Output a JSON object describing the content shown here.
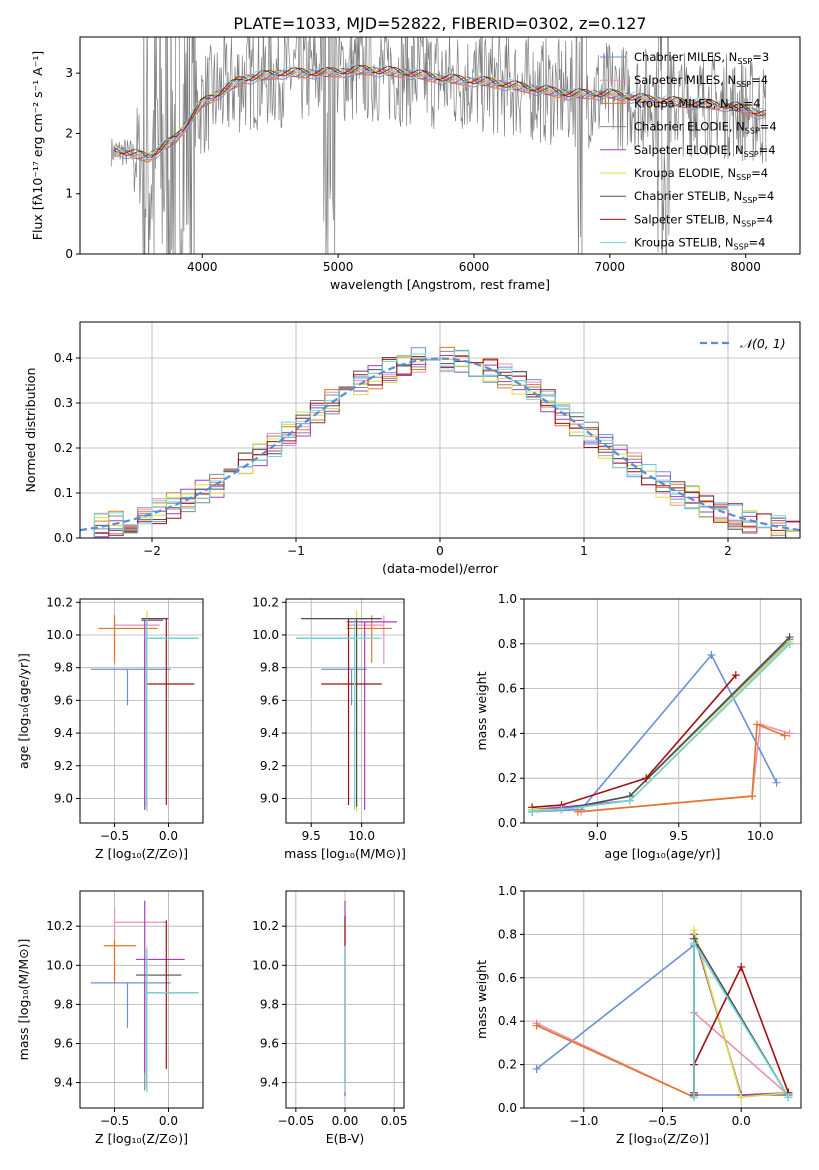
{
  "figure_title": "PLATE=1033, MJD=52822, FIBERID=0302, z=0.127",
  "colors": {
    "chabrier_miles": "#6a8fd6",
    "salpeter_miles": "#f08fb0",
    "kroupa_miles": "#e0782a",
    "chabrier_elodie": "#888888",
    "salpeter_elodie": "#a040c0",
    "kroupa_elodie": "#d8e040",
    "chabrier_stelib": "#505050",
    "salpeter_stelib": "#a01010",
    "kroupa_stelib": "#70d8d8",
    "normal": "#5b8bd4",
    "data": "#808080"
  },
  "chart_data": [
    {
      "id": "spectrum",
      "type": "line",
      "xlabel": "wavelength [Angstrom, rest frame]",
      "ylabel": "Flux [fλ10⁻¹⁷ erg cm⁻² s⁻¹ A⁻¹]",
      "xlim": [
        3100,
        8400
      ],
      "ylim": [
        0,
        3.6
      ],
      "xticks": [
        "4000",
        "5000",
        "6000",
        "7000",
        "8000"
      ],
      "yticks": [
        "0",
        "1",
        "2",
        "3"
      ],
      "data_anchor_x": [
        3400,
        3600,
        3800,
        4000,
        4300,
        4600,
        4900,
        5200,
        5500,
        5800,
        6100,
        6400,
        6700,
        7000,
        7300,
        7600,
        7900,
        8150
      ],
      "data_anchor_y": [
        1.7,
        1.6,
        1.9,
        2.5,
        2.9,
        3.0,
        3.0,
        3.05,
        3.0,
        2.9,
        2.85,
        2.75,
        2.65,
        2.65,
        2.55,
        2.5,
        2.45,
        2.3
      ],
      "legend": [
        {
          "name": "Chabrier MILES, N",
          "sub": "SSP",
          "tail": "=3",
          "color": "#6a8fd6"
        },
        {
          "name": "Salpeter MILES, N",
          "sub": "SSP",
          "tail": "=4",
          "color": "#f08fb0"
        },
        {
          "name": "Kroupa MILES, N",
          "sub": "SSP",
          "tail": "=4",
          "color": "#e0782a"
        },
        {
          "name": "Chabrier ELODIE, N",
          "sub": "SSP",
          "tail": "=4",
          "color": "#888888"
        },
        {
          "name": "Salpeter ELODIE, N",
          "sub": "SSP",
          "tail": "=4",
          "color": "#a040c0"
        },
        {
          "name": "Kroupa ELODIE, N",
          "sub": "SSP",
          "tail": "=4",
          "color": "#d8e040"
        },
        {
          "name": "Chabrier STELIB, N",
          "sub": "SSP",
          "tail": "=4",
          "color": "#505050"
        },
        {
          "name": "Salpeter STELIB, N",
          "sub": "SSP",
          "tail": "=4",
          "color": "#a01010"
        },
        {
          "name": "Kroupa STELIB, N",
          "sub": "SSP",
          "tail": "=4",
          "color": "#70d8d8"
        }
      ]
    },
    {
      "id": "residuals",
      "type": "histogram",
      "xlabel": "(data-model)/error",
      "ylabel": "Normed distribution",
      "xlim": [
        -2.5,
        2.5
      ],
      "ylim": [
        0,
        0.48
      ],
      "xticks": [
        "−2",
        "−1",
        "0",
        "1",
        "2"
      ],
      "yticks": [
        "0.0",
        "0.1",
        "0.2",
        "0.3",
        "0.4"
      ],
      "grid": true,
      "legend_label": "𝒩(0, 1)",
      "bin_width": 0.1
    },
    {
      "id": "age_vs_z",
      "type": "scatter",
      "xlabel": "Z [log₁₀(Z/Z⊙)]",
      "ylabel": "age  [log₁₀(age/yr)]",
      "xlim": [
        -0.82,
        0.32
      ],
      "ylim": [
        8.85,
        10.22
      ],
      "xticks": [
        "−0.5",
        "0.0"
      ],
      "xtick_values": [
        -0.5,
        0.0
      ],
      "yticks": [
        "9.0",
        "9.2",
        "9.4",
        "9.6",
        "9.8",
        "10.0",
        "10.2"
      ],
      "ytick_values": [
        9.0,
        9.2,
        9.4,
        9.6,
        9.8,
        10.0,
        10.2
      ],
      "points": [
        {
          "x": -0.38,
          "xlo": -0.72,
          "xhi": 0.02,
          "y": 9.79,
          "ylo": 9.57,
          "yhi": 9.79,
          "color": "#6a8fd6"
        },
        {
          "x": -0.5,
          "xlo": -0.5,
          "xhi": -0.08,
          "y": 10.06,
          "ylo": 9.82,
          "yhi": 10.12,
          "color": "#f08fb0"
        },
        {
          "x": -0.5,
          "xlo": -0.65,
          "xhi": -0.1,
          "y": 10.04,
          "ylo": 9.83,
          "yhi": 10.12,
          "color": "#e0782a"
        },
        {
          "x": -0.22,
          "xlo": -0.22,
          "xhi": 0.28,
          "y": 9.98,
          "ylo": 8.95,
          "yhi": 9.98,
          "color": "#888888"
        },
        {
          "x": -0.22,
          "xlo": -0.25,
          "xhi": -0.05,
          "y": 10.09,
          "ylo": 8.93,
          "yhi": 10.09,
          "color": "#a040c0"
        },
        {
          "x": -0.2,
          "xlo": -0.25,
          "xhi": 0.0,
          "y": 10.1,
          "ylo": 8.92,
          "yhi": 10.15,
          "color": "#d8e040"
        },
        {
          "x": -0.2,
          "xlo": -0.25,
          "xhi": 0.0,
          "y": 10.1,
          "ylo": 8.95,
          "yhi": 10.1,
          "color": "#505050"
        },
        {
          "x": -0.02,
          "xlo": -0.2,
          "xhi": 0.24,
          "y": 9.7,
          "ylo": 8.96,
          "yhi": 10.1,
          "color": "#a01010"
        },
        {
          "x": -0.2,
          "xlo": -0.22,
          "xhi": 0.28,
          "y": 9.98,
          "ylo": 8.93,
          "yhi": 10.1,
          "color": "#70d8d8"
        }
      ]
    },
    {
      "id": "age_vs_mass",
      "type": "scatter",
      "xlabel": "mass [log₁₀(M/M⊙)]",
      "ylabel": "",
      "xlim": [
        9.25,
        10.42
      ],
      "ylim": [
        8.85,
        10.22
      ],
      "xticks": [
        "9.5",
        "10.0"
      ],
      "xtick_values": [
        9.5,
        10.0
      ],
      "yticks": [
        "9.0",
        "9.2",
        "9.4",
        "9.6",
        "9.8",
        "10.0",
        "10.2"
      ],
      "ytick_values": [
        9.0,
        9.2,
        9.4,
        9.6,
        9.8,
        10.0,
        10.2
      ],
      "points": [
        {
          "x": 9.9,
          "xlo": 9.6,
          "xhi": 10.05,
          "y": 9.79,
          "ylo": 9.57,
          "yhi": 9.79,
          "color": "#6a8fd6"
        },
        {
          "x": 10.22,
          "xlo": 9.85,
          "xhi": 10.22,
          "y": 10.06,
          "ylo": 9.82,
          "yhi": 10.12,
          "color": "#f08fb0"
        },
        {
          "x": 10.1,
          "xlo": 9.85,
          "xhi": 10.3,
          "y": 10.04,
          "ylo": 9.83,
          "yhi": 10.12,
          "color": "#e0782a"
        },
        {
          "x": 9.93,
          "xlo": 9.35,
          "xhi": 9.93,
          "y": 9.98,
          "ylo": 8.95,
          "yhi": 9.98,
          "color": "#888888"
        },
        {
          "x": 10.03,
          "xlo": 9.85,
          "xhi": 10.35,
          "y": 10.08,
          "ylo": 8.93,
          "yhi": 10.08,
          "color": "#a040c0"
        },
        {
          "x": 9.95,
          "xlo": 9.4,
          "xhi": 10.2,
          "y": 10.1,
          "ylo": 8.92,
          "yhi": 10.15,
          "color": "#d8e040"
        },
        {
          "x": 9.95,
          "xlo": 9.4,
          "xhi": 10.2,
          "y": 10.1,
          "ylo": 8.95,
          "yhi": 10.1,
          "color": "#505050"
        },
        {
          "x": 9.87,
          "xlo": 9.6,
          "xhi": 10.2,
          "y": 9.7,
          "ylo": 8.96,
          "yhi": 10.1,
          "color": "#a01010"
        },
        {
          "x": 9.93,
          "xlo": 9.35,
          "xhi": 10.2,
          "y": 9.98,
          "ylo": 8.93,
          "yhi": 10.1,
          "color": "#70d8d8"
        }
      ]
    },
    {
      "id": "weight_vs_age",
      "type": "line",
      "xlabel": "age  [log₁₀(age/yr)]",
      "ylabel": "mass weight",
      "xlim": [
        8.55,
        10.25
      ],
      "ylim": [
        0,
        1.0
      ],
      "xticks": [
        "9.0",
        "9.5",
        "10.0"
      ],
      "xtick_values": [
        9.0,
        9.5,
        10.0
      ],
      "yticks": [
        "0.0",
        "0.2",
        "0.4",
        "0.6",
        "0.8",
        "1.0"
      ],
      "ytick_values": [
        0.0,
        0.2,
        0.4,
        0.6,
        0.8,
        1.0
      ],
      "series": [
        {
          "color": "#6a8fd6",
          "x": [
            8.6,
            8.9,
            9.7,
            10.1
          ],
          "y": [
            0.05,
            0.06,
            0.75,
            0.18
          ]
        },
        {
          "color": "#f08fb0",
          "x": [
            8.9,
            9.95,
            10.0,
            10.18
          ],
          "y": [
            0.05,
            0.12,
            0.44,
            0.4
          ]
        },
        {
          "color": "#e0782a",
          "x": [
            8.88,
            9.95,
            9.98,
            10.15
          ],
          "y": [
            0.05,
            0.12,
            0.44,
            0.39
          ]
        },
        {
          "color": "#888888",
          "x": [
            8.6,
            8.78,
            9.2,
            10.18
          ],
          "y": [
            0.06,
            0.06,
            0.12,
            0.82
          ]
        },
        {
          "color": "#a040c0",
          "x": [
            8.6,
            8.78,
            9.2,
            10.18
          ],
          "y": [
            0.06,
            0.07,
            0.1,
            0.8
          ]
        },
        {
          "color": "#d8e040",
          "x": [
            8.6,
            8.78,
            9.2,
            10.18
          ],
          "y": [
            0.06,
            0.06,
            0.1,
            0.81
          ]
        },
        {
          "color": "#505050",
          "x": [
            8.6,
            8.78,
            9.2,
            10.18
          ],
          "y": [
            0.05,
            0.06,
            0.12,
            0.83
          ]
        },
        {
          "color": "#a01010",
          "x": [
            8.6,
            8.78,
            9.3,
            9.85
          ],
          "y": [
            0.07,
            0.08,
            0.2,
            0.66
          ]
        },
        {
          "color": "#70d8d8",
          "x": [
            8.6,
            8.78,
            9.2,
            10.18
          ],
          "y": [
            0.05,
            0.06,
            0.1,
            0.8
          ]
        }
      ]
    },
    {
      "id": "mass_vs_z",
      "type": "scatter",
      "xlabel": "Z [log₁₀(Z/Z⊙)]",
      "ylabel": "mass [log₁₀(M/M⊙)]",
      "xlim": [
        -0.82,
        0.32
      ],
      "ylim": [
        9.27,
        10.38
      ],
      "xticks": [
        "−0.5",
        "0.0"
      ],
      "xtick_values": [
        -0.5,
        0.0
      ],
      "yticks": [
        "9.4",
        "9.6",
        "9.8",
        "10.0",
        "10.2"
      ],
      "ytick_values": [
        9.4,
        9.6,
        9.8,
        10.0,
        10.2
      ],
      "points": [
        {
          "x": -0.38,
          "xlo": -0.72,
          "xhi": 0.02,
          "y": 9.91,
          "ylo": 9.68,
          "yhi": 9.91,
          "color": "#6a8fd6"
        },
        {
          "x": -0.5,
          "xlo": -0.5,
          "xhi": -0.02,
          "y": 10.22,
          "ylo": 9.92,
          "yhi": 10.29,
          "color": "#f08fb0"
        },
        {
          "x": -0.5,
          "xlo": -0.6,
          "xhi": -0.3,
          "y": 10.1,
          "ylo": 9.91,
          "yhi": 10.13,
          "color": "#e0782a"
        },
        {
          "x": -0.22,
          "xlo": -0.22,
          "xhi": 0.28,
          "y": 9.86,
          "ylo": 9.36,
          "yhi": 9.91,
          "color": "#888888"
        },
        {
          "x": -0.22,
          "xlo": -0.3,
          "xhi": 0.15,
          "y": 10.03,
          "ylo": 9.45,
          "yhi": 10.33,
          "color": "#a040c0"
        },
        {
          "x": -0.2,
          "xlo": -0.25,
          "xhi": 0.02,
          "y": 9.95,
          "ylo": 9.35,
          "yhi": 10.1,
          "color": "#d8e040"
        },
        {
          "x": -0.2,
          "xlo": -0.3,
          "xhi": 0.12,
          "y": 9.95,
          "ylo": 9.37,
          "yhi": 10.08,
          "color": "#505050"
        },
        {
          "x": -0.02,
          "xlo": -0.2,
          "xhi": 0.24,
          "y": 9.86,
          "ylo": 9.47,
          "yhi": 10.23,
          "color": "#a01010"
        },
        {
          "x": -0.2,
          "xlo": -0.22,
          "xhi": 0.28,
          "y": 9.86,
          "ylo": 9.35,
          "yhi": 10.08,
          "color": "#70d8d8"
        }
      ]
    },
    {
      "id": "mass_vs_ebv",
      "type": "scatter",
      "xlabel": "E(B-V)",
      "ylabel": "",
      "xlim": [
        -0.06,
        0.06
      ],
      "ylim": [
        9.27,
        10.38
      ],
      "xticks": [
        "−0.05",
        "0.00",
        "0.05"
      ],
      "xtick_values": [
        -0.05,
        0.0,
        0.05
      ],
      "yticks": [
        "9.4",
        "9.6",
        "9.8",
        "10.0",
        "10.2"
      ],
      "ytick_values": [
        9.4,
        9.6,
        9.8,
        10.0,
        10.2
      ],
      "points": [
        {
          "x": 0.0,
          "xlo": 0.0,
          "xhi": 0.0,
          "y": 10.0,
          "ylo": 9.33,
          "yhi": 10.33,
          "color": "#a040c0"
        },
        {
          "x": 0.0,
          "xlo": 0.0,
          "xhi": 0.0,
          "y": 10.0,
          "ylo": 9.4,
          "yhi": 10.25,
          "color": "#a01010"
        },
        {
          "x": 0.0,
          "xlo": 0.0,
          "xhi": 0.0,
          "y": 10.0,
          "ylo": 9.35,
          "yhi": 10.1,
          "color": "#70d8d8"
        }
      ]
    },
    {
      "id": "weight_vs_z",
      "type": "line",
      "xlabel": "Z [log₁₀(Z/Z⊙)]",
      "ylabel": "mass weight",
      "xlim": [
        -1.38,
        0.38
      ],
      "ylim": [
        0,
        1.0
      ],
      "xticks": [
        "−1.0",
        "−0.5",
        "0.0"
      ],
      "xtick_values": [
        -1.0,
        -0.5,
        0.0
      ],
      "yticks": [
        "0.0",
        "0.2",
        "0.4",
        "0.6",
        "0.8",
        "1.0"
      ],
      "ytick_values": [
        0.0,
        0.2,
        0.4,
        0.6,
        0.8,
        1.0
      ],
      "series": [
        {
          "color": "#6a8fd6",
          "x": [
            -1.3,
            -0.3,
            -0.3,
            0.3
          ],
          "y": [
            0.18,
            0.75,
            0.06,
            0.06
          ]
        },
        {
          "color": "#f08fb0",
          "x": [
            -1.3,
            -0.3,
            -0.3,
            0.3
          ],
          "y": [
            0.39,
            0.05,
            0.44,
            0.06
          ]
        },
        {
          "color": "#e0782a",
          "x": [
            -1.3,
            -0.3
          ],
          "y": [
            0.38,
            0.05
          ]
        },
        {
          "color": "#888888",
          "x": [
            -0.3,
            -0.3,
            0.0,
            0.3
          ],
          "y": [
            0.06,
            0.8,
            0.06,
            0.06
          ]
        },
        {
          "color": "#a040c0",
          "x": [
            -0.3,
            -0.3,
            0.0,
            0.3
          ],
          "y": [
            0.06,
            0.8,
            0.06,
            0.07
          ]
        },
        {
          "color": "#d8e040",
          "x": [
            -0.3,
            -0.3,
            0.0,
            0.3
          ],
          "y": [
            0.06,
            0.82,
            0.05,
            0.07
          ]
        },
        {
          "color": "#505050",
          "x": [
            -0.3,
            -0.3,
            0.3
          ],
          "y": [
            0.06,
            0.78,
            0.05
          ]
        },
        {
          "color": "#a01010",
          "x": [
            -0.3,
            -0.3,
            0.0,
            0.3
          ],
          "y": [
            0.07,
            0.2,
            0.65,
            0.07
          ]
        },
        {
          "color": "#70d8d8",
          "x": [
            -0.3,
            -0.3,
            0.3
          ],
          "y": [
            0.05,
            0.76,
            0.05
          ]
        }
      ]
    }
  ]
}
